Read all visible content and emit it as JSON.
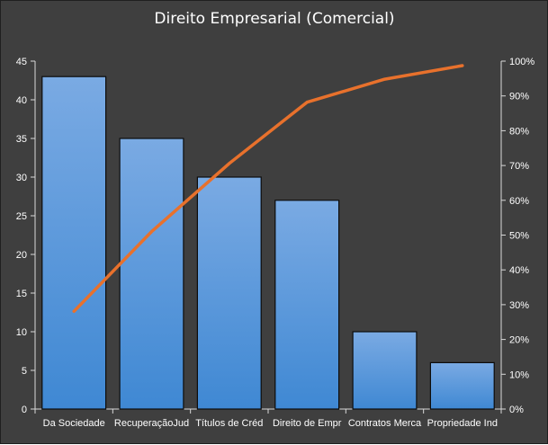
{
  "chart_data": {
    "type": "bar",
    "title": "Direito Empresarial (Comercial)",
    "categories": [
      "Da Sociedade",
      "RecuperaçãoJud",
      "Títulos de Créd",
      "Direito de Empr",
      "Contratos Merca",
      "Propriedade Ind"
    ],
    "series": [
      {
        "type": "bar",
        "values": [
          43,
          35,
          30,
          27,
          10,
          6
        ]
      },
      {
        "type": "line",
        "axis": "secondary",
        "values": [
          28.1,
          51.0,
          70.6,
          88.2,
          94.8,
          98.7
        ]
      }
    ],
    "ylim": [
      0,
      45
    ],
    "y_ticks": [
      "0",
      "5",
      "10",
      "15",
      "20",
      "25",
      "30",
      "35",
      "40",
      "45"
    ],
    "y2lim": [
      0,
      100
    ],
    "y2_ticks": [
      "0%",
      "10%",
      "20%",
      "30%",
      "40%",
      "50%",
      "60%",
      "70%",
      "80%",
      "90%",
      "100%"
    ],
    "grid": false,
    "legend": "none",
    "colors": {
      "background": "#3f3f3f",
      "bar_top": "#7aaae3",
      "bar_bottom": "#3f88d3",
      "bar_edge": "#0d0d0d",
      "line": "#e8712c",
      "axis": "#d9d9d9",
      "text": "#ffffff"
    }
  }
}
